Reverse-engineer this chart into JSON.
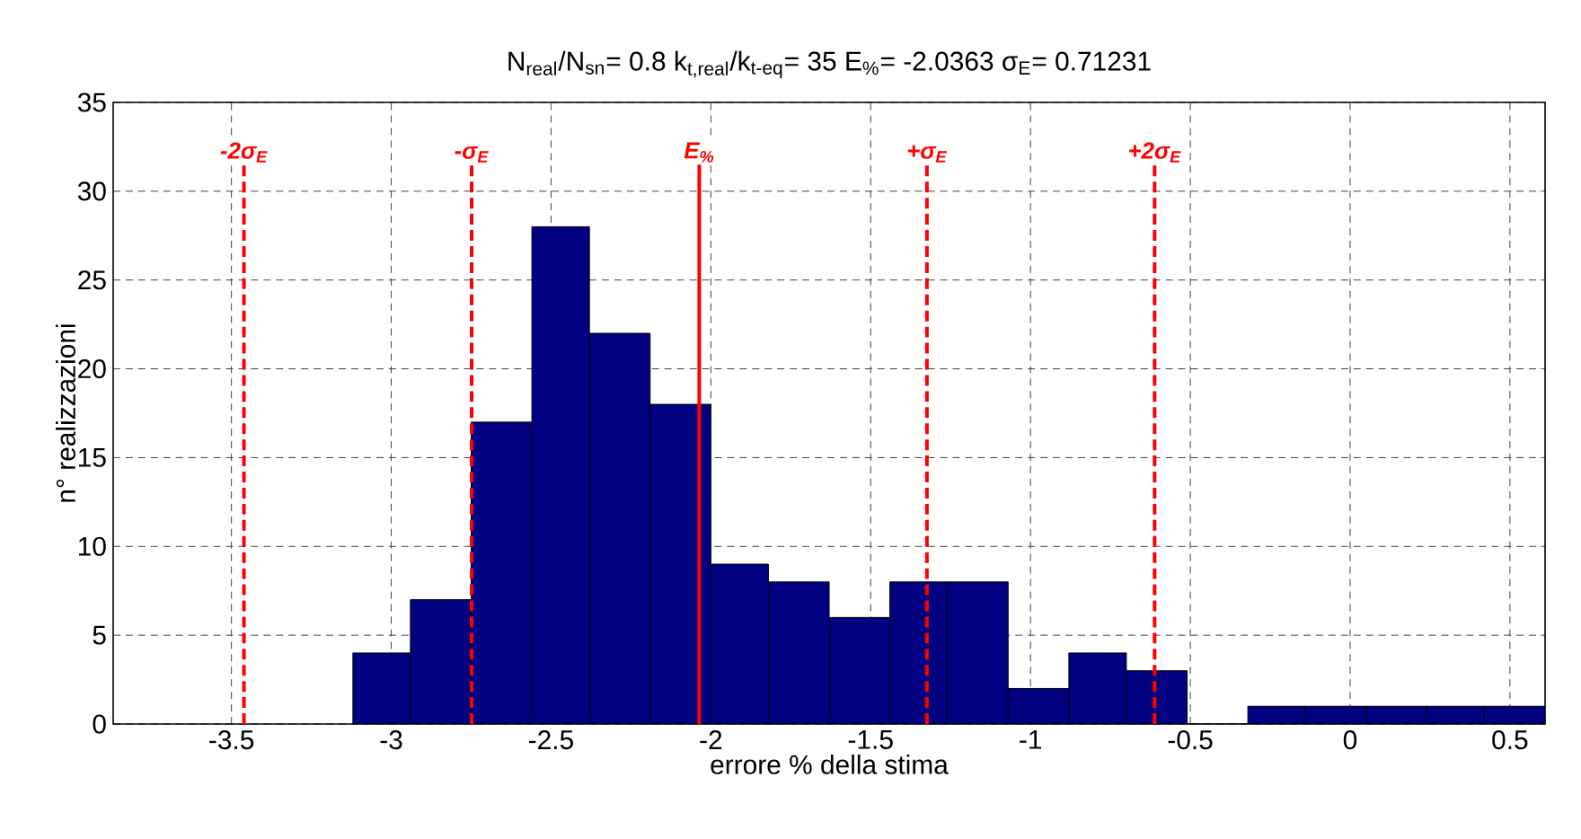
{
  "chart_data": {
    "type": "histogram",
    "title": "N$_{real}$/N$_{sn}$= 0.8 k$_{t,real}$/k$_{t-eq}$= 35 E$_{%}$= -2.0363 σ$_{E}$= 0.71231",
    "xlabel": "errore % della stima",
    "ylabel": "n° realizzazioni",
    "bins": [
      -3.12,
      -2.94,
      -2.75,
      -2.56,
      -2.38,
      -2.19,
      -2.0,
      -1.82,
      -1.63,
      -1.44,
      -1.26,
      -1.07,
      -0.88,
      -0.7,
      -0.51,
      -0.32,
      -0.14,
      0.05,
      0.24,
      0.42,
      0.61
    ],
    "values": [
      4,
      7,
      17,
      28,
      22,
      18,
      9,
      8,
      6,
      8,
      8,
      2,
      4,
      3,
      0,
      1,
      1,
      1,
      1,
      1
    ],
    "color": "#000080",
    "xlim": [
      -3.87,
      0.61
    ],
    "ylim": [
      0,
      35
    ],
    "xticks": [
      -3.5,
      -3,
      -2.5,
      -2,
      -1.5,
      -1,
      -0.5,
      0,
      0.5
    ],
    "yticks": [
      0,
      5,
      10,
      15,
      20,
      25,
      30,
      35
    ],
    "grid": true,
    "ref_lines": [
      {
        "axis": "x",
        "value": -3.4609,
        "label": "-2σ$_{E}$",
        "color": "#ff0000",
        "line_style": "dashed"
      },
      {
        "axis": "x",
        "value": -2.7486,
        "label": "-σ$_{E}$",
        "color": "#ff0000",
        "line_style": "dashed"
      },
      {
        "axis": "x",
        "value": -2.0363,
        "label": "E$_{%}$",
        "color": "#ff0000",
        "line_style": "solid"
      },
      {
        "axis": "x",
        "value": -1.324,
        "label": "+σ$_{E}$",
        "color": "#ff0000",
        "line_style": "dashed"
      },
      {
        "axis": "x",
        "value": -0.6117,
        "label": "+2σ$_{E}$",
        "color": "#ff0000",
        "line_style": "dashed"
      }
    ]
  }
}
